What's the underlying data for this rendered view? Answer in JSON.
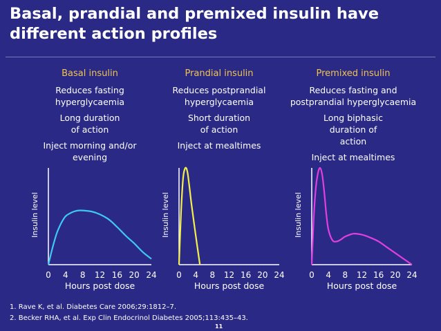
{
  "title": "Basal, prandial and premixed insulin have different action profiles",
  "columns": [
    {
      "heading": "Basal insulin",
      "items": [
        "Reduces fasting hyperglycaemia",
        "Long duration of action",
        "Inject morning and/or evening"
      ]
    },
    {
      "heading": "Prandial insulin",
      "items": [
        "Reduces postprandial hyperglycaemia",
        "Short duration of action",
        "Inject at mealtimes"
      ]
    },
    {
      "heading": "Premixed insulin",
      "items": [
        "Reduces fasting and postprandial hyperglycaemia",
        "Long biphasic duration of action",
        "Inject at mealtimes"
      ]
    }
  ],
  "references": [
    "1. Rave K, et al. Diabetes Care 2006;29:1812–7.",
    "2. Becker RHA, et al. Exp Clin Endocrinol Diabetes 2005;113:435–43."
  ],
  "page_number": "11",
  "colors": {
    "background": "#2a2a86",
    "heading": "#f2c34e",
    "basal": "#3fc8f0",
    "prandial": "#f3f04a",
    "premixed": "#e23fe0"
  },
  "chart_data": [
    {
      "type": "line",
      "xlabel": "Hours post dose",
      "ylabel": "Insulin level",
      "xticks": [
        0,
        4,
        8,
        12,
        16,
        20,
        24
      ],
      "xlim": [
        0,
        24
      ],
      "ylim": [
        0,
        100
      ],
      "series": [
        {
          "color": "#3fc8f0",
          "x": [
            0,
            1,
            2,
            3,
            4,
            5,
            6,
            7,
            8,
            10,
            12,
            14,
            16,
            18,
            20,
            22,
            24
          ],
          "y": [
            0,
            18,
            33,
            43,
            50,
            53,
            55,
            56,
            56,
            55,
            52,
            47,
            39,
            30,
            22,
            13,
            6
          ]
        }
      ]
    },
    {
      "type": "line",
      "xlabel": "Hours post dose",
      "ylabel": "Insulin level",
      "xticks": [
        0,
        4,
        8,
        12,
        16,
        20,
        24
      ],
      "xlim": [
        0,
        24
      ],
      "ylim": [
        0,
        100
      ],
      "series": [
        {
          "color": "#f3f04a",
          "x": [
            0,
            0.5,
            1,
            1.5,
            2,
            2.5,
            3,
            4,
            5
          ],
          "y": [
            0,
            55,
            90,
            100,
            96,
            80,
            62,
            30,
            0
          ]
        }
      ]
    },
    {
      "type": "line",
      "xlabel": "Hours post dose",
      "ylabel": "Insulin level",
      "xticks": [
        0,
        4,
        8,
        12,
        16,
        20,
        24
      ],
      "xlim": [
        0,
        24
      ],
      "ylim": [
        0,
        100
      ],
      "series": [
        {
          "color": "#e23fe0",
          "x": [
            0,
            0.5,
            1,
            1.5,
            2,
            2.5,
            3,
            3.5,
            4,
            5,
            6,
            7,
            8,
            10,
            12,
            14,
            16,
            18,
            20,
            22,
            24
          ],
          "y": [
            0,
            50,
            80,
            95,
            100,
            93,
            75,
            52,
            36,
            25,
            24,
            26,
            29,
            32,
            31,
            28,
            24,
            18,
            12,
            6,
            0
          ]
        }
      ]
    }
  ]
}
